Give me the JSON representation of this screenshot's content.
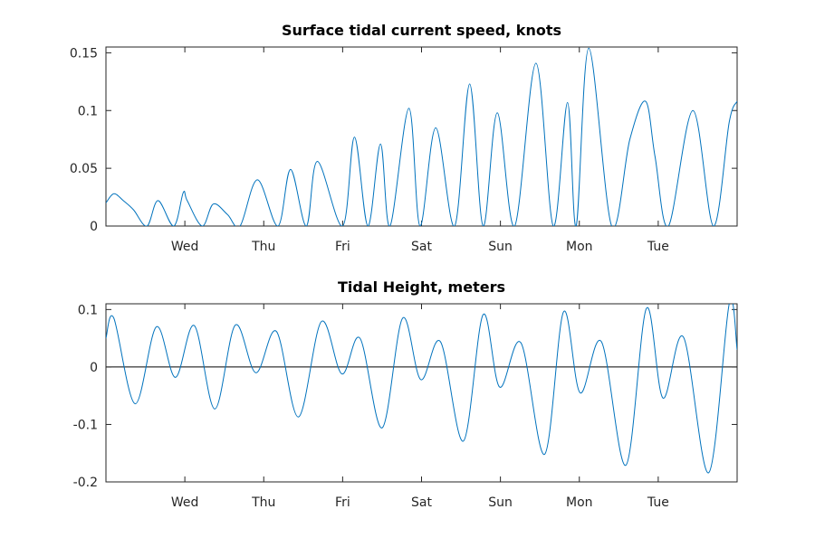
{
  "chart_data": [
    {
      "type": "line",
      "title": "Surface tidal current speed, knots",
      "xlabel": "",
      "ylabel": "",
      "x_unit": "days",
      "xlim": [
        0,
        8
      ],
      "ylim": [
        0,
        0.155
      ],
      "x_ticks": [
        {
          "x": 1,
          "label": "Wed"
        },
        {
          "x": 2,
          "label": "Thu"
        },
        {
          "x": 3,
          "label": "Fri"
        },
        {
          "x": 4,
          "label": "Sat"
        },
        {
          "x": 5,
          "label": "Sun"
        },
        {
          "x": 6,
          "label": "Mon"
        },
        {
          "x": 7,
          "label": "Tue"
        }
      ],
      "y_ticks": [
        {
          "y": 0,
          "label": "0"
        },
        {
          "y": 0.05,
          "label": "0.05"
        },
        {
          "y": 0.1,
          "label": "0.1"
        },
        {
          "y": 0.15,
          "label": "0.15"
        }
      ],
      "color": "#0072bd",
      "zero_line": false,
      "series": [
        {
          "x": [
            0,
            0.1,
            0.22,
            0.35,
            0.52,
            0.66,
            0.86,
            0.98,
            1.03,
            1.22,
            1.36,
            1.54,
            1.7,
            1.92,
            2.18,
            2.34,
            2.54,
            2.68,
            3.0,
            3.15,
            3.32,
            3.48,
            3.6,
            3.84,
            3.98,
            4.18,
            4.42,
            4.61,
            4.78,
            4.96,
            5.18,
            5.45,
            5.67,
            5.85,
            5.96,
            6.12,
            6.41,
            6.64,
            6.84,
            6.96,
            7.13,
            7.44,
            7.7,
            7.9,
            8.0
          ],
          "y": [
            0.02,
            0.028,
            0.022,
            0.014,
            0.0,
            0.022,
            0.0,
            0.029,
            0.022,
            0.0,
            0.019,
            0.01,
            0.0,
            0.04,
            0.0,
            0.049,
            0.0,
            0.056,
            0.0,
            0.077,
            0.0,
            0.071,
            0.0,
            0.102,
            0.0,
            0.085,
            0.0,
            0.123,
            0.0,
            0.098,
            0.0,
            0.141,
            0.0,
            0.107,
            0.0,
            0.154,
            0.0,
            0.075,
            0.108,
            0.06,
            0.0,
            0.1,
            0.0,
            0.09,
            0.108
          ]
        }
      ]
    },
    {
      "type": "line",
      "title": "Tidal Height, meters",
      "xlabel": "",
      "ylabel": "",
      "x_unit": "days",
      "xlim": [
        0,
        8
      ],
      "ylim": [
        -0.2,
        0.11
      ],
      "x_ticks": [
        {
          "x": 1,
          "label": "Wed"
        },
        {
          "x": 2,
          "label": "Thu"
        },
        {
          "x": 3,
          "label": "Fri"
        },
        {
          "x": 4,
          "label": "Sat"
        },
        {
          "x": 5,
          "label": "Sun"
        },
        {
          "x": 6,
          "label": "Mon"
        },
        {
          "x": 7,
          "label": "Tue"
        }
      ],
      "y_ticks": [
        {
          "y": -0.2,
          "label": "-0.2"
        },
        {
          "y": -0.1,
          "label": "-0.1"
        },
        {
          "y": 0,
          "label": "0"
        },
        {
          "y": 0.1,
          "label": "0.1"
        }
      ],
      "color": "#0072bd",
      "zero_line": true,
      "series": [
        {
          "x": [
            0,
            0.1,
            0.37,
            0.64,
            0.88,
            1.12,
            1.38,
            1.64,
            1.9,
            2.16,
            2.44,
            2.73,
            2.99,
            3.22,
            3.5,
            3.76,
            3.99,
            4.24,
            4.53,
            4.78,
            4.99,
            5.26,
            5.56,
            5.8,
            6.01,
            6.28,
            6.59,
            6.85,
            7.06,
            7.32,
            7.64,
            7.9,
            8.0
          ],
          "y": [
            0.05,
            0.085,
            -0.064,
            0.07,
            -0.018,
            0.072,
            -0.073,
            0.073,
            -0.01,
            0.062,
            -0.087,
            0.079,
            -0.012,
            0.05,
            -0.106,
            0.085,
            -0.022,
            0.044,
            -0.129,
            0.091,
            -0.035,
            0.042,
            -0.152,
            0.096,
            -0.045,
            0.044,
            -0.171,
            0.102,
            -0.054,
            0.052,
            -0.184,
            0.11,
            0.03
          ]
        }
      ]
    }
  ]
}
